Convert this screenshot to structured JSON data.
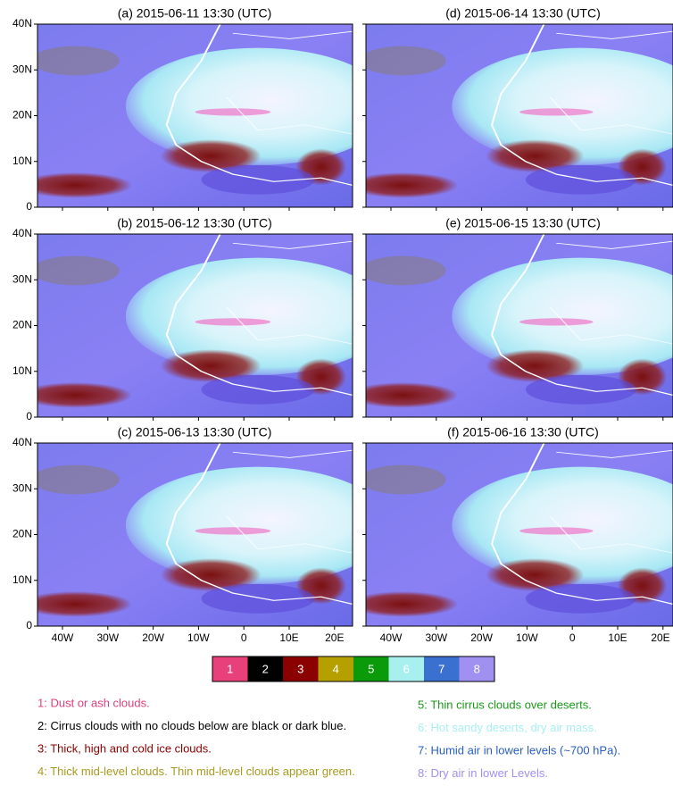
{
  "panels": [
    {
      "title": "(a) 2015-06-11 13:30 (UTC)"
    },
    {
      "title": "(b) 2015-06-12 13:30 (UTC)"
    },
    {
      "title": "(c) 2015-06-13 13:30 (UTC)"
    },
    {
      "title": "(d) 2015-06-14 13:30 (UTC)"
    },
    {
      "title": "(e) 2015-06-15 13:30 (UTC)"
    },
    {
      "title": "(f) 2015-06-16 13:30 (UTC)"
    }
  ],
  "lat_labels": [
    "0",
    "10N",
    "20N",
    "30N",
    "40N"
  ],
  "lon_labels": [
    "40W",
    "30W",
    "20W",
    "10W",
    "0",
    "10E",
    "20E"
  ],
  "legend": [
    {
      "number": "1",
      "color": "#e8407a",
      "text_color": "#e0407a",
      "description": "1: Dust or ash clouds."
    },
    {
      "number": "2",
      "color": "#000000",
      "text_color": "#000000",
      "description": "2: Cirrus clouds with no clouds below are black or dark blue."
    },
    {
      "number": "3",
      "color": "#8b0000",
      "text_color": "#8b0000",
      "description": "3: Thick, high and cold ice clouds."
    },
    {
      "number": "4",
      "color": "#b5a000",
      "text_color": "#a89a20",
      "description": "4: Thick mid-level clouds. Thin mid-level clouds appear green."
    },
    {
      "number": "5",
      "color": "#0a9a0a",
      "text_color": "#1a9a1a",
      "description": "5: Thin cirrus clouds over deserts."
    },
    {
      "number": "6",
      "color": "#a8f0f0",
      "text_color": "#a8f0f0",
      "description": "6: Hot sandy deserts, dry air mass."
    },
    {
      "number": "7",
      "color": "#3a70d0",
      "text_color": "#2a5fc0",
      "description": "7: Humid air in lower levels (~700 hPa)."
    },
    {
      "number": "8",
      "color": "#a090f0",
      "text_color": "#a090f0",
      "description": "8: Dry air in lower Levels."
    }
  ]
}
